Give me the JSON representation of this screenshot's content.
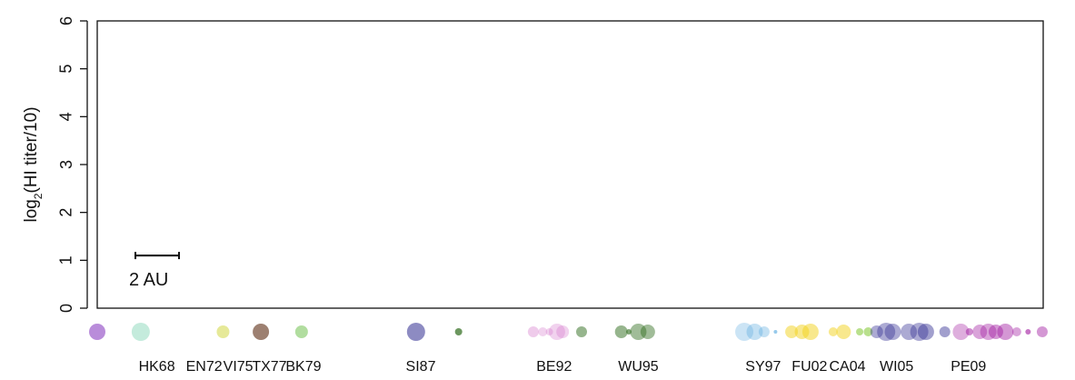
{
  "chart_data": {
    "type": "scatter",
    "title": "",
    "xlabel": "",
    "ylabel": {
      "main": "log",
      "subscript": "2",
      "suffix": "(HI titer/10)"
    },
    "ylim": [
      0,
      6
    ],
    "yticks": [
      "0",
      "1",
      "2",
      "3",
      "4",
      "5",
      "6"
    ],
    "xlim": [
      0,
      100
    ],
    "grid": false,
    "legend": "none",
    "scale_bar": {
      "label": "2 AU",
      "length_au": 2,
      "y": 1.1
    },
    "clusters": [
      {
        "label": "HK68",
        "color": "#8b3fc1",
        "label_x": 6.3
      },
      {
        "label": "EN72",
        "color": "#56c79c",
        "label_x": 11.3
      },
      {
        "label": "VI75",
        "color": "#c7cf1b",
        "label_x": 14.9
      },
      {
        "label": "TX77",
        "color": "#5c2b12",
        "label_x": 18.2
      },
      {
        "label": "BK79",
        "color": "#53b42b",
        "label_x": 21.8
      },
      {
        "label": "SI87",
        "color": "#2f2b8f",
        "label_x": 34.2
      },
      {
        "label": "BE92",
        "color": "#d06ac7",
        "label_x": 48.3
      },
      {
        "label": "WU95",
        "color": "#2d6b1b",
        "label_x": 57.2
      },
      {
        "label": "SY97",
        "color": "#52a7de",
        "label_x": 70.4
      },
      {
        "label": "FU02",
        "color": "#f2d21c",
        "label_x": 75.3
      },
      {
        "label": "CA04",
        "color": "#73c21c",
        "label_x": 79.3
      },
      {
        "label": "WI05",
        "color": "#2f2b91",
        "label_x": 84.5
      },
      {
        "label": "PE09",
        "color": "#a0189f",
        "label_x": 92.1
      }
    ],
    "points": [
      {
        "cluster": "HK68",
        "x": 0,
        "size": 9,
        "opacity": 0.6
      },
      {
        "cluster": "EN72",
        "x": 4.6,
        "size": 10,
        "opacity": 0.35
      },
      {
        "cluster": "VI75",
        "x": 13.3,
        "size": 7,
        "opacity": 0.45
      },
      {
        "cluster": "TX77",
        "x": 17.3,
        "size": 9,
        "opacity": 0.6
      },
      {
        "cluster": "BK79",
        "x": 21.6,
        "size": 7,
        "opacity": 0.45
      },
      {
        "cluster": "SI87",
        "x": 33.7,
        "size": 10,
        "opacity": 0.55
      },
      {
        "cluster": "WU95",
        "x": 38.2,
        "size": 4,
        "opacity": 0.7
      },
      {
        "cluster": "BE92",
        "x": 46.1,
        "size": 6,
        "opacity": 0.35
      },
      {
        "cluster": "BE92",
        "x": 47.1,
        "size": 5,
        "opacity": 0.3
      },
      {
        "cluster": "BE92",
        "x": 47.8,
        "size": 4,
        "opacity": 0.3
      },
      {
        "cluster": "BE92",
        "x": 48.6,
        "size": 9,
        "opacity": 0.3
      },
      {
        "cluster": "BE92",
        "x": 49.2,
        "size": 7,
        "opacity": 0.3
      },
      {
        "cluster": "WU95",
        "x": 51.2,
        "size": 6,
        "opacity": 0.5
      },
      {
        "cluster": "WU95",
        "x": 55.4,
        "size": 7,
        "opacity": 0.5
      },
      {
        "cluster": "WU95",
        "x": 56.2,
        "size": 3,
        "opacity": 0.6
      },
      {
        "cluster": "WU95",
        "x": 57.2,
        "size": 9,
        "opacity": 0.45
      },
      {
        "cluster": "WU95",
        "x": 58.2,
        "size": 8,
        "opacity": 0.45
      },
      {
        "cluster": "SY97",
        "x": 68.4,
        "size": 10,
        "opacity": 0.3
      },
      {
        "cluster": "SY97",
        "x": 69.5,
        "size": 9,
        "opacity": 0.35
      },
      {
        "cluster": "SY97",
        "x": 70.5,
        "size": 6,
        "opacity": 0.35
      },
      {
        "cluster": "SY97",
        "x": 71.7,
        "size": 2,
        "opacity": 0.6
      },
      {
        "cluster": "FU02",
        "x": 73.4,
        "size": 7,
        "opacity": 0.5
      },
      {
        "cluster": "FU02",
        "x": 74.5,
        "size": 8,
        "opacity": 0.5
      },
      {
        "cluster": "FU02",
        "x": 75.4,
        "size": 9,
        "opacity": 0.5
      },
      {
        "cluster": "FU02",
        "x": 77.8,
        "size": 5,
        "opacity": 0.5
      },
      {
        "cluster": "FU02",
        "x": 78.9,
        "size": 8,
        "opacity": 0.5
      },
      {
        "cluster": "CA04",
        "x": 80.6,
        "size": 4,
        "opacity": 0.5
      },
      {
        "cluster": "CA04",
        "x": 81.5,
        "size": 5,
        "opacity": 0.5
      },
      {
        "cluster": "WI05",
        "x": 82.4,
        "size": 7,
        "opacity": 0.4
      },
      {
        "cluster": "WI05",
        "x": 83.4,
        "size": 10,
        "opacity": 0.4
      },
      {
        "cluster": "WI05",
        "x": 84.1,
        "size": 9,
        "opacity": 0.4
      },
      {
        "cluster": "WI05",
        "x": 85.8,
        "size": 9,
        "opacity": 0.4
      },
      {
        "cluster": "WI05",
        "x": 86.9,
        "size": 10,
        "opacity": 0.4
      },
      {
        "cluster": "WI05",
        "x": 87.6,
        "size": 9,
        "opacity": 0.45
      },
      {
        "cluster": "WI05",
        "x": 89.6,
        "size": 6,
        "opacity": 0.45
      },
      {
        "cluster": "PE09",
        "x": 91.3,
        "size": 9,
        "opacity": 0.35
      },
      {
        "cluster": "PE09",
        "x": 92.2,
        "size": 4,
        "opacity": 0.5
      },
      {
        "cluster": "PE09",
        "x": 93.3,
        "size": 8,
        "opacity": 0.4
      },
      {
        "cluster": "PE09",
        "x": 94.2,
        "size": 9,
        "opacity": 0.4
      },
      {
        "cluster": "PE09",
        "x": 95.0,
        "size": 8,
        "opacity": 0.45
      },
      {
        "cluster": "PE09",
        "x": 96.0,
        "size": 9,
        "opacity": 0.45
      },
      {
        "cluster": "PE09",
        "x": 97.2,
        "size": 5,
        "opacity": 0.4
      },
      {
        "cluster": "PE09",
        "x": 98.4,
        "size": 3,
        "opacity": 0.6
      },
      {
        "cluster": "PE09",
        "x": 99.9,
        "size": 6,
        "opacity": 0.45
      }
    ]
  }
}
